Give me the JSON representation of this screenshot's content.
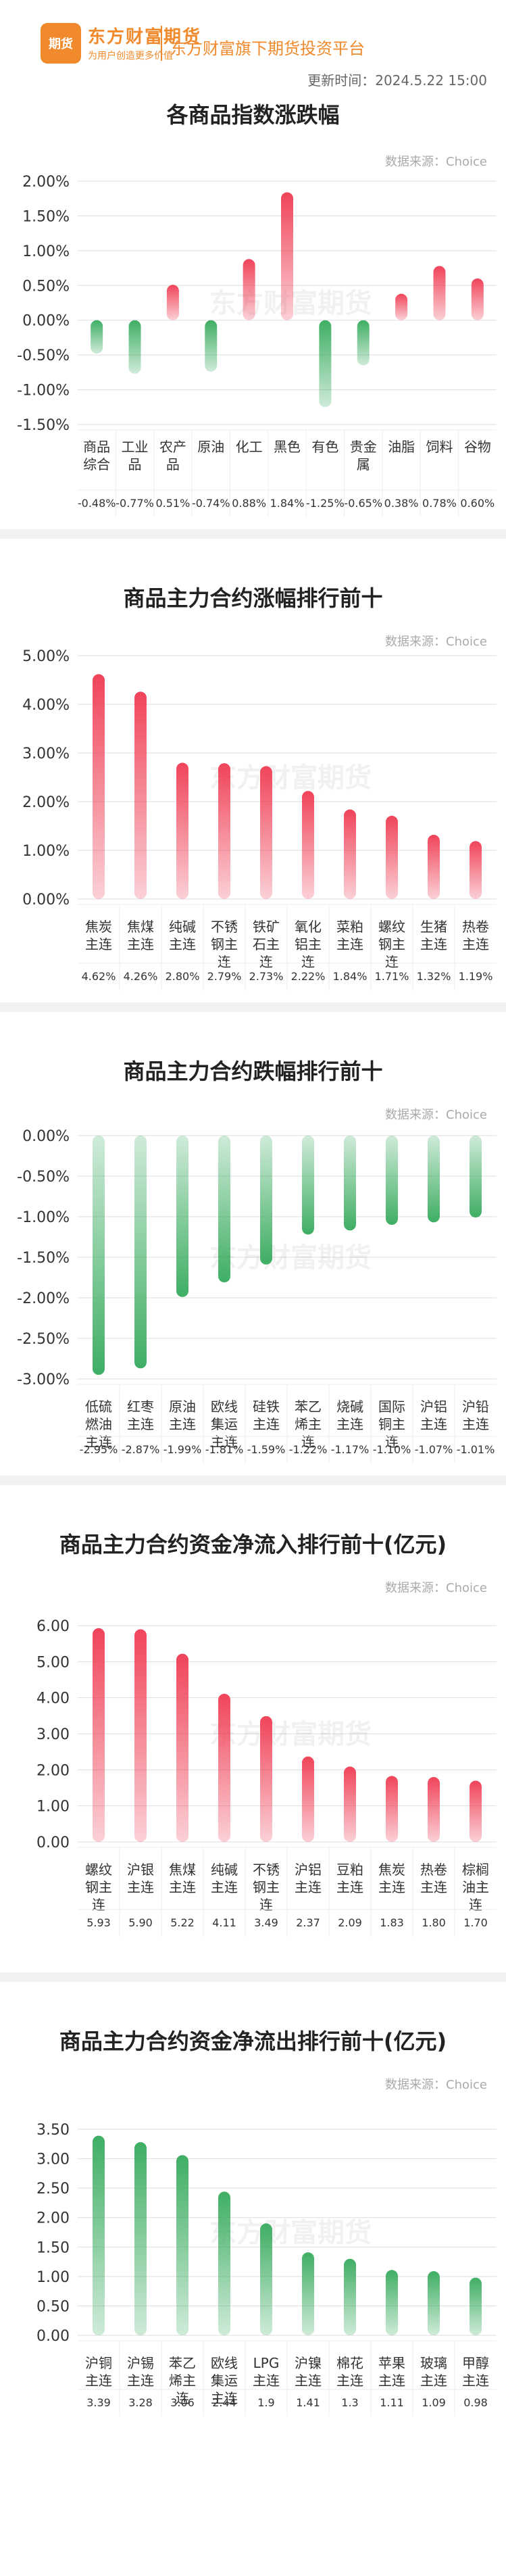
{
  "header": {
    "logo_mark": "期货",
    "logo_name": "东方财富期货",
    "logo_slogan": "为用户创造更多价值",
    "platform": "东方财富旗下期货投资平台",
    "update_time": "更新时间：2024.5.22 15:00"
  },
  "watermark": "东方财富期货",
  "colors": {
    "red": "#f0445a",
    "green": "#3fae64",
    "grid": "#dddddd"
  },
  "chart_data": [
    {
      "type": "bar",
      "title": "各商品指数涨跌幅",
      "source": "数据来源：Choice",
      "ylim": [
        -1.5,
        2.0
      ],
      "yticks": [
        "-1.50%",
        "-1.00%",
        "-0.50%",
        "0.00%",
        "0.50%",
        "1.00%",
        "1.50%",
        "2.00%"
      ],
      "ytick_values": [
        -1.5,
        -1.0,
        -0.5,
        0.0,
        0.5,
        1.0,
        1.5,
        2.0
      ],
      "categories": [
        "商品\n综合",
        "工业\n品",
        "农产\n品",
        "原油",
        "化工",
        "黑色",
        "有色",
        "贵金\n属",
        "油脂",
        "饲料",
        "谷物"
      ],
      "values": [
        -0.48,
        -0.77,
        0.51,
        -0.74,
        0.88,
        1.84,
        -1.25,
        -0.65,
        0.38,
        0.78,
        0.6
      ],
      "value_labels": [
        "-0.48%",
        "-0.77%",
        "0.51%",
        "-0.74%",
        "0.88%",
        "1.84%",
        "-1.25%",
        "-0.65%",
        "0.38%",
        "0.78%",
        "0.60%"
      ]
    },
    {
      "type": "bar",
      "title": "商品主力合约涨幅排行前十",
      "source": "数据来源：Choice",
      "ylim": [
        0,
        5.0
      ],
      "yticks": [
        "0.00%",
        "1.00%",
        "2.00%",
        "3.00%",
        "4.00%",
        "5.00%"
      ],
      "ytick_values": [
        0,
        1,
        2,
        3,
        4,
        5
      ],
      "categories": [
        "焦炭\n主连",
        "焦煤\n主连",
        "纯碱\n主连",
        "不锈\n钢主\n连",
        "铁矿\n石主\n连",
        "氧化\n铝主\n连",
        "菜粕\n主连",
        "螺纹\n钢主\n连",
        "生猪\n主连",
        "热卷\n主连"
      ],
      "values": [
        4.62,
        4.26,
        2.8,
        2.79,
        2.73,
        2.22,
        1.84,
        1.71,
        1.32,
        1.19
      ],
      "value_labels": [
        "4.62%",
        "4.26%",
        "2.80%",
        "2.79%",
        "2.73%",
        "2.22%",
        "1.84%",
        "1.71%",
        "1.32%",
        "1.19%"
      ]
    },
    {
      "type": "bar",
      "title": "商品主力合约跌幅排行前十",
      "source": "数据来源：Choice",
      "ylim": [
        -3.0,
        0
      ],
      "yticks": [
        "-3.00%",
        "-2.50%",
        "-2.00%",
        "-1.50%",
        "-1.00%",
        "-0.50%",
        "0.00%"
      ],
      "ytick_values": [
        -3.0,
        -2.5,
        -2.0,
        -1.5,
        -1.0,
        -0.5,
        0.0
      ],
      "categories": [
        "低硫\n燃油\n主连",
        "红枣\n主连",
        "原油\n主连",
        "欧线\n集运\n主连",
        "硅铁\n主连",
        "苯乙\n烯主\n连",
        "烧碱\n主连",
        "国际\n铜主\n连",
        "沪铝\n主连",
        "沪铅\n主连"
      ],
      "values": [
        -2.95,
        -2.87,
        -1.99,
        -1.81,
        -1.59,
        -1.22,
        -1.17,
        -1.1,
        -1.07,
        -1.01
      ],
      "value_labels": [
        "-2.95%",
        "-2.87%",
        "-1.99%",
        "-1.81%",
        "-1.59%",
        "-1.22%",
        "-1.17%",
        "-1.10%",
        "-1.07%",
        "-1.01%"
      ]
    },
    {
      "type": "bar",
      "title": "商品主力合约资金净流入排行前十(亿元)",
      "source": "数据来源：Choice",
      "ylim": [
        0,
        6.0
      ],
      "yticks": [
        "0.00",
        "1.00",
        "2.00",
        "3.00",
        "4.00",
        "5.00",
        "6.00"
      ],
      "ytick_values": [
        0,
        1,
        2,
        3,
        4,
        5,
        6
      ],
      "categories": [
        "螺纹\n钢主\n连",
        "沪银\n主连",
        "焦煤\n主连",
        "纯碱\n主连",
        "不锈\n钢主\n连",
        "沪铝\n主连",
        "豆粕\n主连",
        "焦炭\n主连",
        "热卷\n主连",
        "棕榈\n油主\n连"
      ],
      "values": [
        5.93,
        5.9,
        5.22,
        4.11,
        3.49,
        2.37,
        2.09,
        1.83,
        1.8,
        1.7
      ],
      "value_labels": [
        "5.93",
        "5.90",
        "5.22",
        "4.11",
        "3.49",
        "2.37",
        "2.09",
        "1.83",
        "1.80",
        "1.70"
      ]
    },
    {
      "type": "bar",
      "title": "商品主力合约资金净流出排行前十(亿元)",
      "source": "数据来源：Choice",
      "ylim": [
        0,
        3.5
      ],
      "yticks": [
        "0.00",
        "0.50",
        "1.00",
        "1.50",
        "2.00",
        "2.50",
        "3.00",
        "3.50"
      ],
      "ytick_values": [
        0,
        0.5,
        1.0,
        1.5,
        2.0,
        2.5,
        3.0,
        3.5
      ],
      "categories": [
        "沪铜\n主连",
        "沪锡\n主连",
        "苯乙\n烯主\n连",
        "欧线\n集运\n主连",
        "LPG\n主连",
        "沪镍\n主连",
        "棉花\n主连",
        "苹果\n主连",
        "玻璃\n主连",
        "甲醇\n主连"
      ],
      "values": [
        3.39,
        3.28,
        3.06,
        2.44,
        1.9,
        1.41,
        1.3,
        1.11,
        1.09,
        0.98
      ],
      "value_labels": [
        "3.39",
        "3.28",
        "3.06",
        "2.44",
        "1.9",
        "1.41",
        "1.3",
        "1.11",
        "1.09",
        "0.98"
      ]
    }
  ]
}
